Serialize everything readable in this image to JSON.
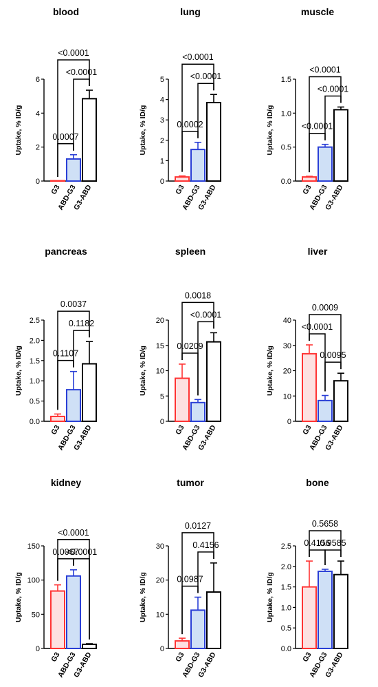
{
  "colors": {
    "G3": "#ff3333",
    "ABD-G3": "#2a3fd6",
    "G3-ABD": "#000000",
    "G3_fill": "#fde1e1",
    "ABD-G3_fill": "#cfe0f6",
    "G3-ABD_fill": "#ffffff"
  },
  "chart_data": [
    {
      "type": "bar",
      "title": "blood",
      "ylabel": "Uptake, % ID/g",
      "categories": [
        "G3",
        "ABD-G3",
        "G3-ABD"
      ],
      "values": [
        0,
        1.3,
        4.85
      ],
      "errors": [
        0,
        0.25,
        0.5
      ],
      "ylim": [
        0,
        6
      ],
      "yticks": [
        "0",
        "2",
        "4",
        "6"
      ],
      "comparisons": [
        {
          "from": 0,
          "to": 1,
          "label": "0.0007"
        },
        {
          "from": 1,
          "to": 2,
          "label": "<0.0001"
        },
        {
          "from": 0,
          "to": 2,
          "label": "<0.0001"
        }
      ]
    },
    {
      "type": "bar",
      "title": "lung",
      "ylabel": "Uptake, % ID/g",
      "categories": [
        "G3",
        "ABD-G3",
        "G3-ABD"
      ],
      "values": [
        0.2,
        1.55,
        3.85
      ],
      "errors": [
        0.05,
        0.35,
        0.4
      ],
      "ylim": [
        0,
        5
      ],
      "yticks": [
        "0",
        "1",
        "2",
        "3",
        "4",
        "5"
      ],
      "comparisons": [
        {
          "from": 0,
          "to": 1,
          "label": "0.0002"
        },
        {
          "from": 1,
          "to": 2,
          "label": "<0.0001"
        },
        {
          "from": 0,
          "to": 2,
          "label": "<0.0001"
        }
      ]
    },
    {
      "type": "bar",
      "title": "muscle",
      "ylabel": "Uptake, % ID/g",
      "categories": [
        "G3",
        "ABD-G3",
        "G3-ABD"
      ],
      "values": [
        0.06,
        0.5,
        1.05
      ],
      "errors": [
        0.01,
        0.04,
        0.04
      ],
      "ylim": [
        0,
        1.5
      ],
      "yticks": [
        "0.0",
        "0.5",
        "1.0",
        "1.5"
      ],
      "comparisons": [
        {
          "from": 0,
          "to": 1,
          "label": "<0.0001"
        },
        {
          "from": 1,
          "to": 2,
          "label": "<0.0001"
        },
        {
          "from": 0,
          "to": 2,
          "label": "<0.0001"
        }
      ]
    },
    {
      "type": "bar",
      "title": "pancreas",
      "ylabel": "Uptake, % ID/g",
      "categories": [
        "G3",
        "ABD-G3",
        "G3-ABD"
      ],
      "values": [
        0.12,
        0.78,
        1.42
      ],
      "errors": [
        0.06,
        0.45,
        0.55
      ],
      "ylim": [
        0,
        2.5
      ],
      "yticks": [
        "0.0",
        "0.5",
        "1.0",
        "1.5",
        "2.0",
        "2.5"
      ],
      "comparisons": [
        {
          "from": 0,
          "to": 1,
          "label": "0.1107"
        },
        {
          "from": 1,
          "to": 2,
          "label": "0.1182"
        },
        {
          "from": 0,
          "to": 2,
          "label": "0.0037"
        }
      ]
    },
    {
      "type": "bar",
      "title": "spleen",
      "ylabel": "Uptake, % ID/g",
      "categories": [
        "G3",
        "ABD-G3",
        "G3-ABD"
      ],
      "values": [
        8.5,
        3.7,
        15.7
      ],
      "errors": [
        2.8,
        0.6,
        1.8
      ],
      "ylim": [
        0,
        20
      ],
      "yticks": [
        "0",
        "5",
        "10",
        "15",
        "20"
      ],
      "comparisons": [
        {
          "from": 0,
          "to": 1,
          "label": "0.0209"
        },
        {
          "from": 1,
          "to": 2,
          "label": "<0.0001"
        },
        {
          "from": 0,
          "to": 2,
          "label": "0.0018"
        }
      ]
    },
    {
      "type": "bar",
      "title": "liver",
      "ylabel": "Uptake, % ID/g",
      "categories": [
        "G3",
        "ABD-G3",
        "G3-ABD"
      ],
      "values": [
        26.7,
        8.2,
        16.0
      ],
      "errors": [
        3.5,
        2.0,
        3.0
      ],
      "ylim": [
        0,
        40
      ],
      "yticks": [
        "0",
        "10",
        "20",
        "30",
        "40"
      ],
      "comparisons": [
        {
          "from": 0,
          "to": 1,
          "label": "<0.0001"
        },
        {
          "from": 1,
          "to": 2,
          "label": "0.0095"
        },
        {
          "from": 0,
          "to": 2,
          "label": "0.0009"
        }
      ]
    },
    {
      "type": "bar",
      "title": "kidney",
      "ylabel": "Uptake, % ID/g",
      "categories": [
        "G3",
        "ABD-G3",
        "G3-ABD"
      ],
      "values": [
        84,
        106,
        6
      ],
      "errors": [
        9,
        9,
        1
      ],
      "ylim": [
        0,
        150
      ],
      "yticks": [
        "0",
        "50",
        "100",
        "150"
      ],
      "comparisons": [
        {
          "from": 0,
          "to": 1,
          "label": "0.0067"
        },
        {
          "from": 1,
          "to": 2,
          "label": "<0.0001"
        },
        {
          "from": 0,
          "to": 2,
          "label": "<0.0001"
        }
      ]
    },
    {
      "type": "bar",
      "title": "tumor",
      "ylabel": "Uptake, % ID/g",
      "categories": [
        "G3",
        "ABD-G3",
        "G3-ABD"
      ],
      "values": [
        2.2,
        11.2,
        16.5
      ],
      "errors": [
        0.8,
        3.8,
        8.5
      ],
      "ylim": [
        0,
        30
      ],
      "yticks": [
        "0",
        "10",
        "20",
        "30"
      ],
      "comparisons": [
        {
          "from": 0,
          "to": 1,
          "label": "0.0987"
        },
        {
          "from": 1,
          "to": 2,
          "label": "0.4156"
        },
        {
          "from": 0,
          "to": 2,
          "label": "0.0127"
        }
      ]
    },
    {
      "type": "bar",
      "title": "bone",
      "ylabel": "Uptake, % ID/g",
      "categories": [
        "G3",
        "ABD-G3",
        "G3-ABD"
      ],
      "values": [
        1.5,
        1.88,
        1.8
      ],
      "errors": [
        0.63,
        0.05,
        0.33
      ],
      "ylim": [
        0,
        2.5
      ],
      "yticks": [
        "0.0",
        "0.5",
        "1.0",
        "1.5",
        "2.0",
        "2.5"
      ],
      "comparisons": [
        {
          "from": 0,
          "to": 1,
          "label": "0.4156"
        },
        {
          "from": 1,
          "to": 2,
          "label": "0.9585"
        },
        {
          "from": 0,
          "to": 2,
          "label": "0.5658"
        }
      ]
    }
  ]
}
